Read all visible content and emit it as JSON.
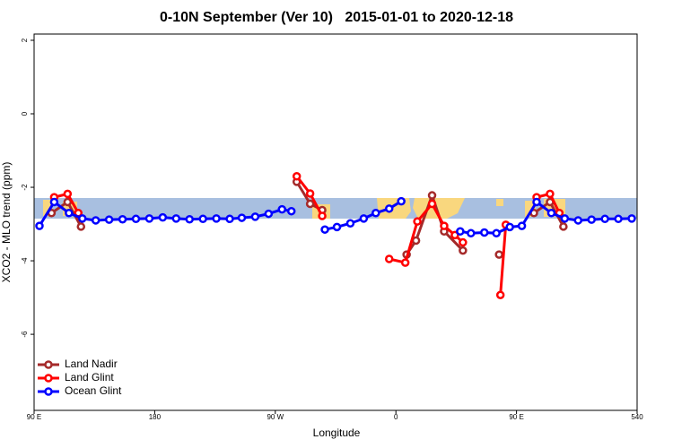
{
  "chart_data": {
    "type": "line",
    "title": "0-10N September (Ver 10)   2015-01-01 to 2020-12-18",
    "xlabel": "Longitude",
    "ylabel": "XCO2 - MLO trend (ppm)",
    "xlim": [
      90,
      540
    ],
    "ylim": [
      -8.07,
      2.17
    ],
    "xticks": [
      {
        "value": 90,
        "label": "90 E"
      },
      180,
      {
        "value": 270,
        "label": "90 W"
      },
      {
        "value": 360,
        "label": "0"
      },
      {
        "value": 450,
        "label": "90 E"
      },
      540
    ],
    "yticks": [
      2,
      0,
      -2,
      -4,
      -6
    ],
    "legend": "lower left",
    "series": [
      {
        "name": "Land Nadir",
        "color": "#a52a2a",
        "x": [
          103,
          115,
          125,
          286,
          296,
          305,
          368,
          375,
          387,
          396,
          410,
          437,
          463,
          475,
          485
        ],
        "values": [
          -2.7,
          -2.4,
          -3.07,
          -1.85,
          -2.45,
          -2.62,
          -3.83,
          -3.45,
          -2.22,
          -3.2,
          -3.72,
          -3.83,
          -2.7,
          -2.4,
          -3.07
        ],
        "breaks_after": null
      },
      {
        "name": "Land Glint",
        "color": "#ff0000",
        "x": [
          105,
          115,
          123,
          286,
          296,
          305,
          355,
          367,
          376,
          387,
          396,
          404,
          410,
          438,
          442,
          465,
          475,
          482
        ],
        "values": [
          -2.27,
          -2.18,
          -2.7,
          -1.7,
          -2.17,
          -2.78,
          -3.95,
          -4.05,
          -2.93,
          -2.45,
          -3.05,
          -3.3,
          -3.5,
          -4.93,
          -3.02,
          -2.27,
          -2.18,
          -2.7
        ]
      },
      {
        "name": "Ocean Glint",
        "color": "#0000ff",
        "x": [
          94,
          105,
          116,
          126,
          136,
          146,
          156,
          166,
          176,
          186,
          196,
          206,
          216,
          226,
          236,
          245,
          255,
          265,
          275,
          282,
          307,
          316,
          326,
          336,
          345,
          355,
          364,
          408,
          416,
          426,
          435,
          445,
          454,
          465,
          476,
          486,
          496,
          506,
          516,
          526,
          536
        ],
        "values": [
          -3.05,
          -2.4,
          -2.7,
          -2.85,
          -2.9,
          -2.88,
          -2.87,
          -2.86,
          -2.85,
          -2.82,
          -2.85,
          -2.87,
          -2.86,
          -2.85,
          -2.86,
          -2.83,
          -2.8,
          -2.72,
          -2.6,
          -2.65,
          -3.15,
          -3.08,
          -2.98,
          -2.85,
          -2.7,
          -2.58,
          -2.38,
          -3.2,
          -3.25,
          -3.23,
          -3.25,
          -3.08,
          -3.05,
          -2.4,
          -2.7,
          -2.85,
          -2.9,
          -2.88,
          -2.86,
          -2.86,
          -2.85
        ]
      }
    ]
  }
}
